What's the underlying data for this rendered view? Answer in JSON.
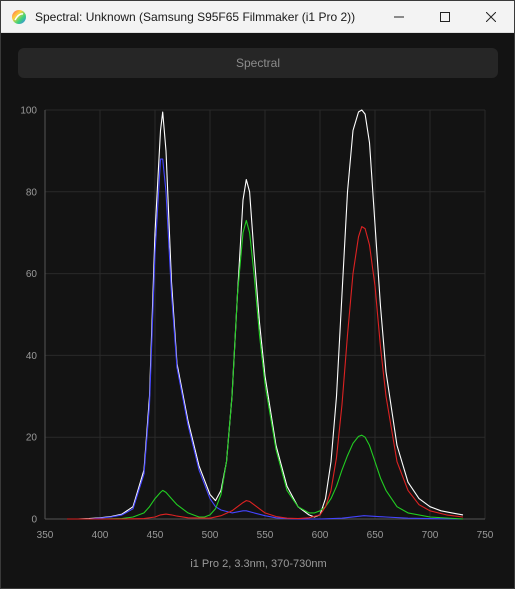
{
  "window": {
    "title": "Spectral: Unknown (Samsung S95F65 Filmmaker (i1 Pro 2))",
    "icons": [
      "app-icon",
      "minimize-icon",
      "maximize-icon",
      "close-icon"
    ]
  },
  "toolbar": {
    "spectral_label": "Spectral"
  },
  "chart_data": {
    "type": "line",
    "title": "",
    "xlabel": "i1 Pro 2, 3.3nm, 370-730nm",
    "ylabel": "",
    "xlim": [
      350,
      750
    ],
    "ylim": [
      0,
      100
    ],
    "xticks": [
      350,
      400,
      450,
      500,
      550,
      600,
      650,
      700,
      750
    ],
    "yticks": [
      0,
      20,
      40,
      60,
      80,
      100
    ],
    "grid": true,
    "legend": "none",
    "series": [
      {
        "color": "#ffffff",
        "x": [
          370,
          380,
          390,
          400,
          410,
          420,
          430,
          440,
          445,
          450,
          455,
          457,
          460,
          465,
          470,
          480,
          490,
          500,
          505,
          510,
          515,
          520,
          525,
          530,
          533,
          536,
          540,
          545,
          550,
          560,
          570,
          580,
          590,
          595,
          600,
          605,
          610,
          615,
          620,
          625,
          630,
          635,
          638,
          641,
          645,
          650,
          655,
          660,
          670,
          680,
          690,
          700,
          710,
          720,
          730
        ],
        "y": [
          0,
          0,
          0.1,
          0.3,
          0.6,
          1.2,
          3,
          12,
          30,
          70,
          95,
          99.5,
          90,
          58,
          38,
          24,
          13,
          6,
          4.5,
          7,
          14,
          30,
          55,
          78,
          83,
          80,
          65,
          48,
          35,
          18,
          8,
          3,
          1,
          0.5,
          1,
          5,
          14,
          30,
          55,
          80,
          95,
          99.5,
          100,
          99,
          92,
          72,
          52,
          36,
          18,
          9,
          5,
          3,
          2,
          1.5,
          1
        ]
      },
      {
        "color": "#4444ff",
        "x": [
          370,
          380,
          390,
          400,
          410,
          420,
          430,
          440,
          445,
          450,
          455,
          457,
          460,
          465,
          470,
          480,
          490,
          500,
          505,
          510,
          520,
          530,
          533,
          540,
          550,
          560,
          570,
          580,
          590,
          600,
          620,
          640,
          660,
          680,
          700,
          730
        ],
        "y": [
          0,
          0,
          0,
          0.2,
          0.5,
          1,
          2.5,
          11,
          28,
          65,
          88,
          88,
          80,
          55,
          37,
          23,
          12,
          5,
          3,
          2.2,
          1.5,
          2,
          2,
          1.5,
          0.8,
          0.3,
          0.1,
          0,
          0,
          0,
          0.2,
          0.8,
          0.5,
          0.2,
          0.1,
          0
        ]
      },
      {
        "color": "#22cc22",
        "x": [
          370,
          400,
          420,
          430,
          440,
          445,
          450,
          455,
          457,
          460,
          465,
          470,
          480,
          490,
          495,
          500,
          505,
          510,
          515,
          520,
          525,
          530,
          533,
          536,
          540,
          545,
          550,
          560,
          570,
          580,
          590,
          595,
          600,
          605,
          610,
          615,
          620,
          625,
          630,
          635,
          638,
          641,
          645,
          650,
          655,
          660,
          670,
          680,
          700,
          730
        ],
        "y": [
          0,
          0,
          0.1,
          0.5,
          1.5,
          3,
          5,
          6.5,
          7,
          6.5,
          5,
          3.5,
          1.5,
          0.5,
          0.5,
          1,
          2.5,
          6,
          14,
          30,
          55,
          70,
          73,
          70,
          60,
          45,
          33,
          17,
          7,
          3,
          1.5,
          1.5,
          2,
          3,
          5,
          8,
          12,
          15.5,
          18.5,
          20.2,
          20.5,
          20,
          18,
          14,
          10,
          7,
          3,
          1.5,
          0.5,
          0
        ]
      },
      {
        "color": "#dd2222",
        "x": [
          370,
          420,
          440,
          450,
          455,
          460,
          465,
          470,
          480,
          500,
          510,
          520,
          525,
          530,
          533,
          536,
          540,
          545,
          550,
          560,
          570,
          580,
          590,
          600,
          605,
          610,
          615,
          620,
          625,
          630,
          635,
          638,
          641,
          645,
          650,
          655,
          660,
          670,
          680,
          690,
          700,
          715,
          730
        ],
        "y": [
          0,
          0,
          0.1,
          0.5,
          1,
          1.2,
          1,
          0.7,
          0.3,
          0.2,
          0.8,
          2,
          3,
          4,
          4.5,
          4.3,
          3.5,
          2.5,
          1.5,
          0.6,
          0.2,
          0.1,
          0.3,
          1,
          3,
          7,
          15,
          28,
          45,
          60,
          69,
          71.5,
          71,
          67,
          57,
          42,
          30,
          14,
          7,
          3.5,
          2,
          1,
          0.5
        ]
      }
    ]
  }
}
